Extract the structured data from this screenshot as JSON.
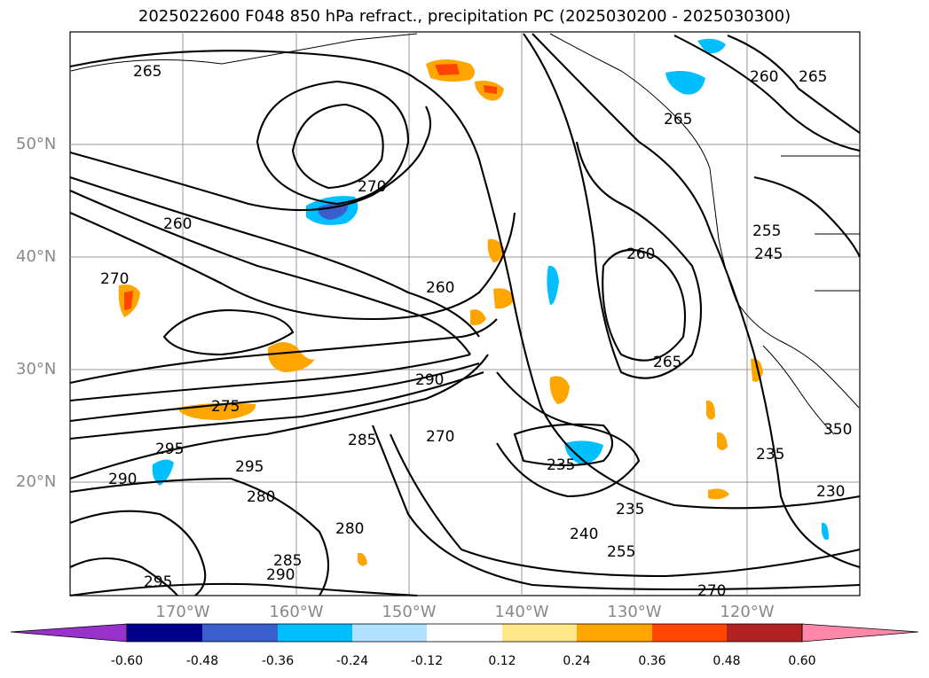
{
  "title": "2025022600 F048 850 hPa refract., precipitation PC (2025030200 - 2025030300)",
  "lat_labels": [
    "50°N",
    "40°N",
    "30°N",
    "20°N"
  ],
  "lon_labels": [
    "170°W",
    "160°W",
    "150°W",
    "140°W",
    "130°W",
    "120°W"
  ],
  "contour_labels": [
    "265",
    "260",
    "265",
    "265",
    "270",
    "260",
    "270",
    "255",
    "245",
    "260",
    "265",
    "260",
    "275",
    "290",
    "295",
    "290",
    "295",
    "285",
    "280",
    "270",
    "235",
    "235",
    "240",
    "255",
    "280",
    "285",
    "290",
    "295",
    "235",
    "230",
    "350",
    "270"
  ],
  "colorbar": {
    "labels": [
      "-0.60",
      "-0.48",
      "-0.36",
      "-0.24",
      "-0.12",
      "0.12",
      "0.24",
      "0.36",
      "0.48",
      "0.60"
    ],
    "colors": [
      "#9932CC",
      "#00008B",
      "#3A5FCD",
      "#00BFFF",
      "#B0E2FF",
      "#FFFFFF",
      "#FFE88A",
      "#FFA500",
      "#FF4500",
      "#B22222",
      "#FF88AA"
    ]
  },
  "colors": {
    "contour": "#000000",
    "grid": "#999999",
    "coast": "#000000",
    "axis_label": "#888888"
  }
}
